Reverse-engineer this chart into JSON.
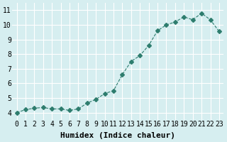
{
  "x": [
    0,
    1,
    2,
    3,
    4,
    5,
    6,
    7,
    8,
    9,
    10,
    11,
    12,
    13,
    14,
    15,
    16,
    17,
    18,
    19,
    20,
    21,
    22,
    23
  ],
  "y": [
    4.0,
    4.2,
    4.3,
    4.35,
    4.25,
    4.25,
    4.15,
    4.25,
    4.65,
    4.9,
    5.3,
    5.5,
    6.6,
    7.5,
    7.9,
    8.6,
    9.6,
    10.0,
    10.2,
    10.55,
    10.35,
    10.8,
    10.35,
    9.55
  ],
  "xlabel": "Humidex (Indice chaleur)",
  "ylabel": "",
  "xlim": [
    -0.5,
    23.5
  ],
  "ylim": [
    3.5,
    11.5
  ],
  "yticks": [
    4,
    5,
    6,
    7,
    8,
    9,
    10,
    11
  ],
  "xticks": [
    0,
    1,
    2,
    3,
    4,
    5,
    6,
    7,
    8,
    9,
    10,
    11,
    12,
    13,
    14,
    15,
    16,
    17,
    18,
    19,
    20,
    21,
    22,
    23
  ],
  "line_color": "#2e7d6e",
  "marker": "D",
  "marker_size": 3,
  "line_width": 0.8,
  "bg_color": "#d6eef0",
  "grid_color": "#ffffff",
  "tick_label_fontsize": 7,
  "xlabel_fontsize": 8
}
